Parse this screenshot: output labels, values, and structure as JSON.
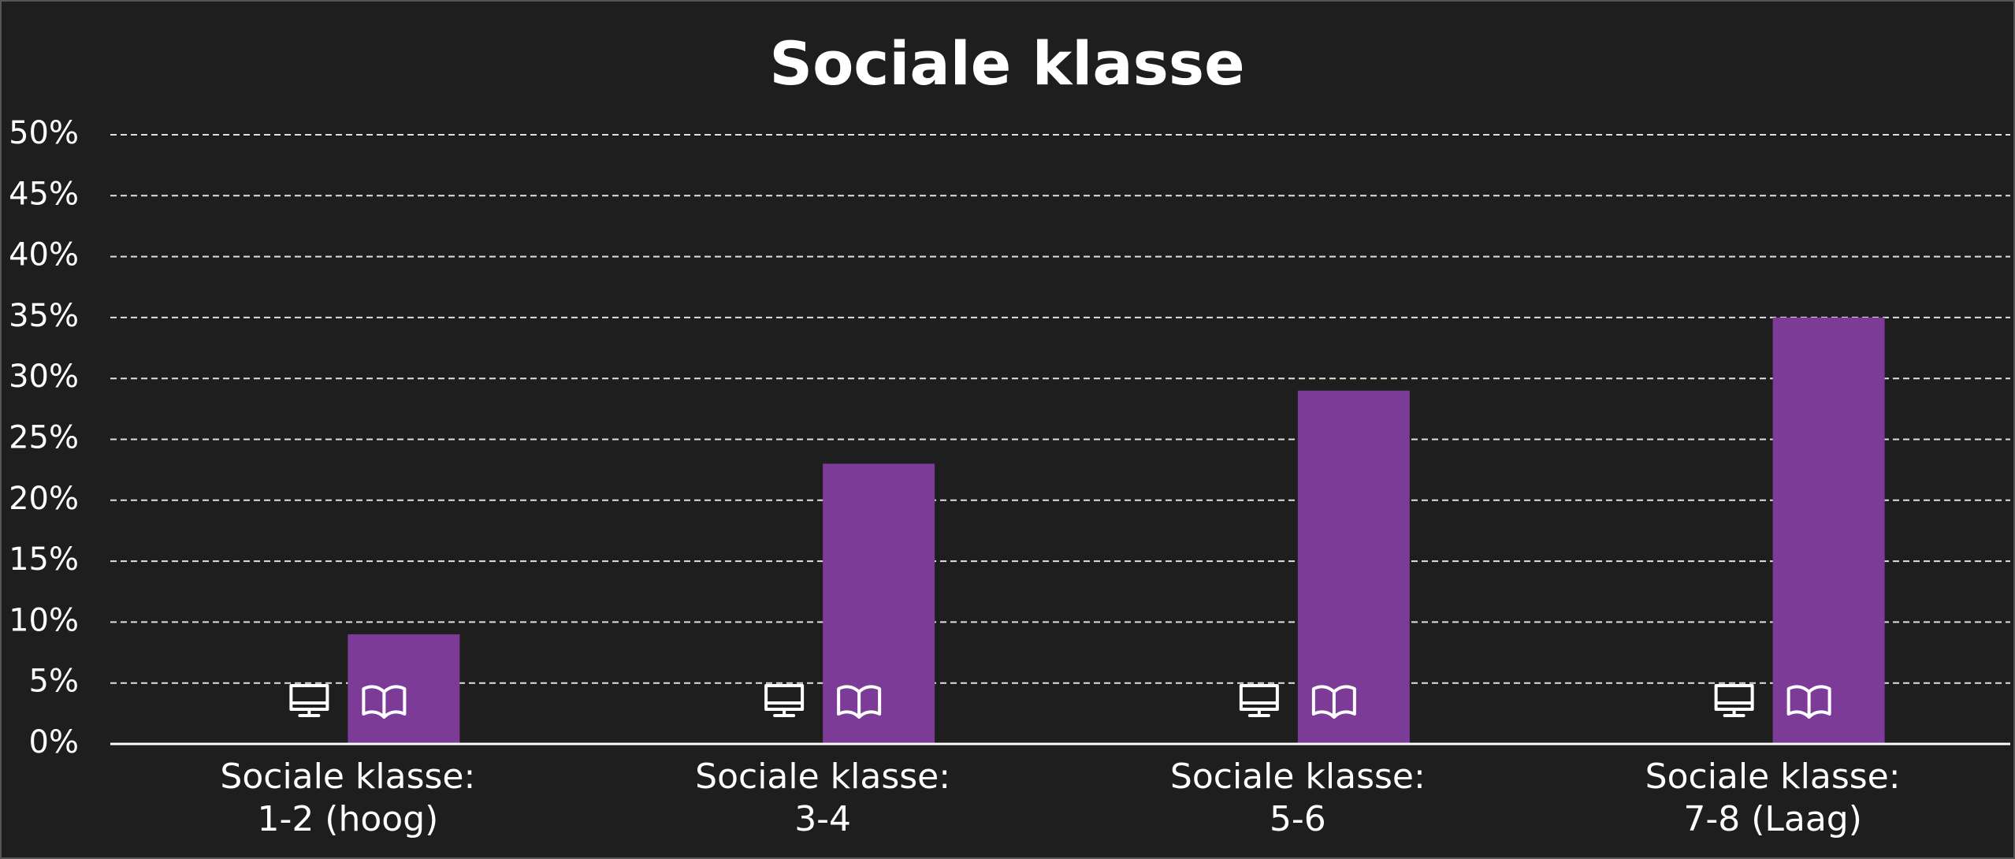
{
  "chart_data": {
    "type": "bar",
    "title": "Sociale klasse",
    "categories": [
      [
        "Sociale klasse:",
        "1-2 (hoog)"
      ],
      [
        "Sociale klasse:",
        "3-4"
      ],
      [
        "Sociale klasse:",
        "5-6"
      ],
      [
        "Sociale klasse:",
        "7-8 (Laag)"
      ]
    ],
    "values": [
      9,
      23,
      29,
      35
    ],
    "color": "#7b3b96",
    "ylim": [
      0,
      50
    ],
    "yticks": [
      {
        "value": 0,
        "label": "0%"
      },
      {
        "value": 5,
        "label": "5%"
      },
      {
        "value": 10,
        "label": "10%"
      },
      {
        "value": 15,
        "label": "15%"
      },
      {
        "value": 20,
        "label": "20%"
      },
      {
        "value": 25,
        "label": "25%"
      },
      {
        "value": 30,
        "label": "30%"
      },
      {
        "value": 35,
        "label": "35%"
      },
      {
        "value": 40,
        "label": "40%"
      },
      {
        "value": 45,
        "label": "45%"
      },
      {
        "value": 50,
        "label": "50%"
      }
    ],
    "grid": true
  }
}
